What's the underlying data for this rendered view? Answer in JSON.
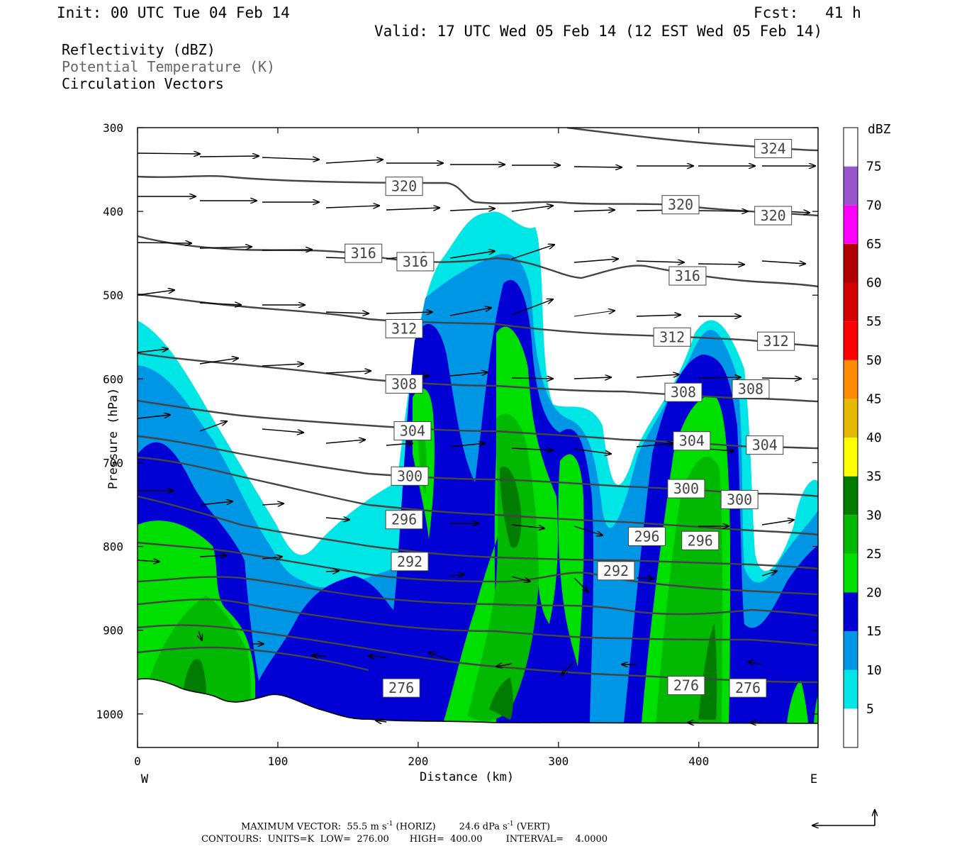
{
  "header": {
    "init": "Init: 00 UTC Tue 04 Feb 14",
    "fcst": "Fcst:   41 h",
    "valid": "Valid: 17 UTC Wed 05 Feb 14 (12 EST Wed 05 Feb 14)"
  },
  "legend_fields": [
    {
      "label": "Reflectivity (dBZ)",
      "color": "#000000"
    },
    {
      "label": "Potential Temperature (K)",
      "color": "#666666"
    },
    {
      "label": "Circulation Vectors",
      "color": "#000000"
    }
  ],
  "footer": {
    "max_vector_1": "MAXIMUM VECTOR:  55.5 m s",
    "max_vector_2": "(HORIZ)        24.6 dPa s",
    "max_vector_3": "(VERT)",
    "contours": "CONTOURS:  UNITS=K  LOW=  276.00       HIGH=  400.00        INTERVAL=    4.0000"
  },
  "chart_data": {
    "type": "heatmap",
    "title": "",
    "xlabel": "Distance (km)",
    "ylabel": "Pressure (hPa)",
    "x_ticks": [
      "0",
      "100",
      "200",
      "300",
      "400"
    ],
    "x_end_labels": {
      "left": "W",
      "right": "E"
    },
    "y_ticks": [
      "300",
      "400",
      "500",
      "600",
      "700",
      "800",
      "900",
      "1000"
    ],
    "xlim": [
      0,
      485
    ],
    "ylim": [
      300,
      1040
    ],
    "y_reversed": true,
    "colorbar": {
      "title": "dBZ",
      "levels": [
        "5",
        "10",
        "15",
        "20",
        "25",
        "30",
        "35",
        "40",
        "45",
        "50",
        "55",
        "60",
        "65",
        "70",
        "75"
      ],
      "colors": [
        "#00e5e5",
        "#0096e6",
        "#0000d5",
        "#00e000",
        "#00b900",
        "#007d00",
        "#ffff00",
        "#e6b800",
        "#ff8c00",
        "#ff0000",
        "#d40000",
        "#b00000",
        "#ff00ff",
        "#9955cc",
        "#ffffff"
      ]
    },
    "theta_labels": [
      {
        "value": "324",
        "x": 453,
        "p": 325
      },
      {
        "value": "320",
        "x": 190,
        "p": 370
      },
      {
        "value": "320",
        "x": 387,
        "p": 392
      },
      {
        "value": "320",
        "x": 453,
        "p": 405
      },
      {
        "value": "316",
        "x": 161,
        "p": 450
      },
      {
        "value": "316",
        "x": 198,
        "p": 460
      },
      {
        "value": "316",
        "x": 392,
        "p": 477
      },
      {
        "value": "312",
        "x": 190,
        "p": 540
      },
      {
        "value": "312",
        "x": 381,
        "p": 550
      },
      {
        "value": "312",
        "x": 455,
        "p": 555
      },
      {
        "value": "308",
        "x": 190,
        "p": 606
      },
      {
        "value": "308",
        "x": 389,
        "p": 616
      },
      {
        "value": "308",
        "x": 437,
        "p": 612
      },
      {
        "value": "304",
        "x": 196,
        "p": 662
      },
      {
        "value": "304",
        "x": 395,
        "p": 674
      },
      {
        "value": "304",
        "x": 447,
        "p": 679
      },
      {
        "value": "300",
        "x": 194,
        "p": 716
      },
      {
        "value": "300",
        "x": 391,
        "p": 731
      },
      {
        "value": "300",
        "x": 429,
        "p": 744
      },
      {
        "value": "296",
        "x": 190,
        "p": 768
      },
      {
        "value": "296",
        "x": 363,
        "p": 788
      },
      {
        "value": "296",
        "x": 401,
        "p": 793
      },
      {
        "value": "292",
        "x": 194,
        "p": 818
      },
      {
        "value": "292",
        "x": 341,
        "p": 829
      },
      {
        "value": "276",
        "x": 188,
        "p": 969
      },
      {
        "value": "276",
        "x": 391,
        "p": 966
      },
      {
        "value": "276",
        "x": 435,
        "p": 969
      }
    ],
    "theta_contours_K": [
      276,
      280,
      284,
      288,
      292,
      296,
      300,
      304,
      308,
      312,
      316,
      320,
      324
    ],
    "max_vector": {
      "horizontal_m_s": 55.5,
      "vertical_dPa_s": 24.6
    }
  }
}
